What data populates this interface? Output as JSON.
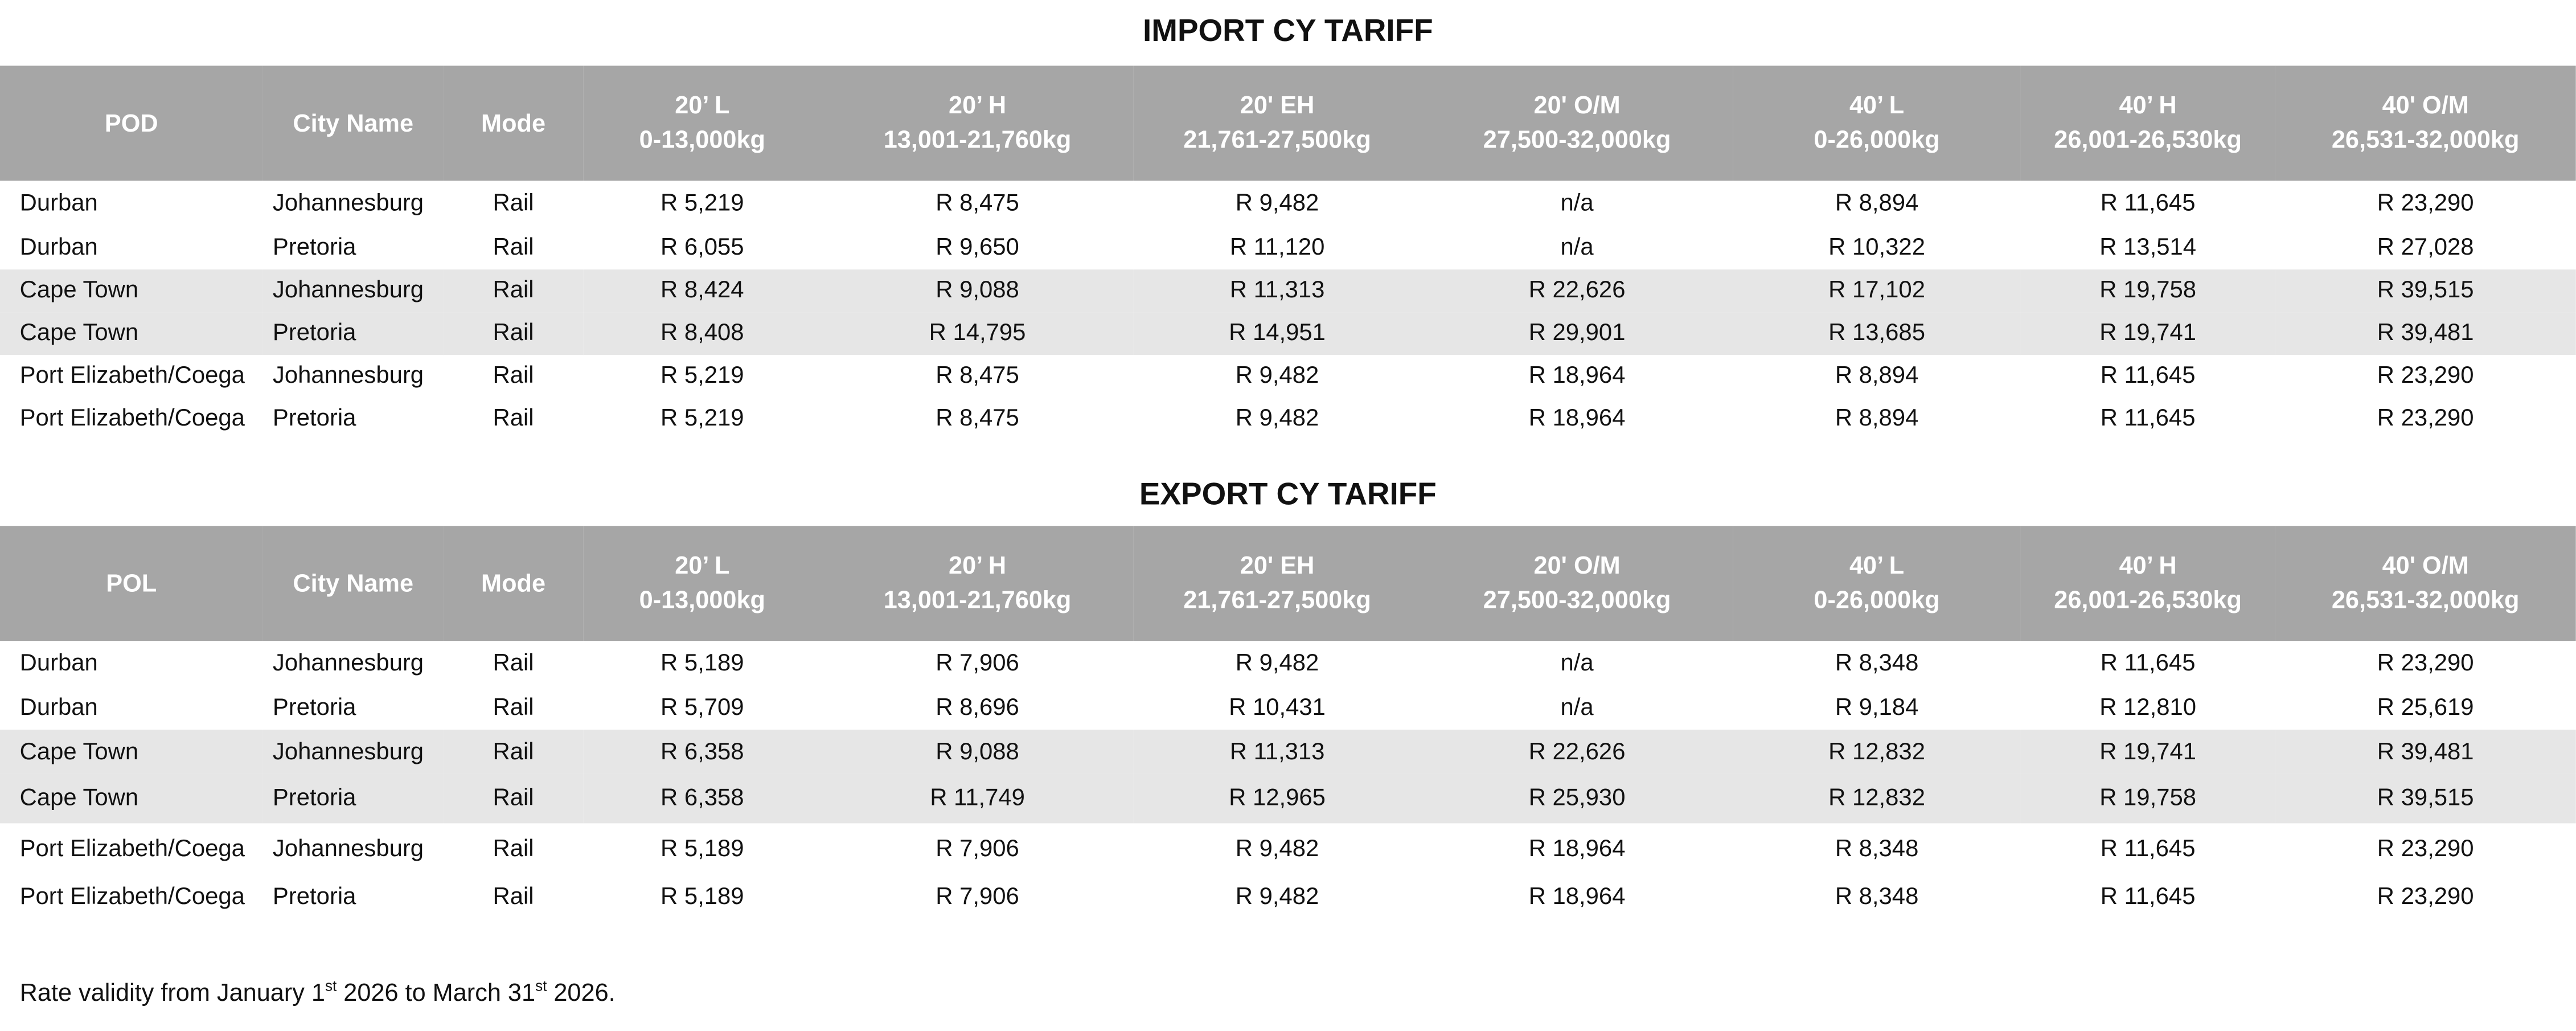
{
  "import": {
    "title": "IMPORT CY TARIFF",
    "headers": [
      [
        "POD",
        ""
      ],
      [
        "City Name",
        ""
      ],
      [
        "Mode",
        ""
      ],
      [
        "20’ L",
        "0-13,000kg"
      ],
      [
        "20’ H",
        "13,001-21,760kg"
      ],
      [
        "20' EH",
        "21,761-27,500kg"
      ],
      [
        "20' O/M",
        "27,500-32,000kg"
      ],
      [
        "40’ L",
        "0-26,000kg"
      ],
      [
        "40’ H",
        "26,001-26,530kg"
      ],
      [
        "40' O/M",
        "26,531-32,000kg"
      ]
    ],
    "rows": [
      [
        "Durban",
        "Johannesburg",
        "Rail",
        "R 5,219",
        "R 8,475",
        "R 9,482",
        "n/a",
        "R 8,894",
        "R 11,645",
        "R 23,290"
      ],
      [
        "Durban",
        "Pretoria",
        "Rail",
        "R 6,055",
        "R 9,650",
        "R 11,120",
        "n/a",
        "R 10,322",
        "R 13,514",
        "R 27,028"
      ],
      [
        "Cape Town",
        "Johannesburg",
        "Rail",
        "R 8,424",
        "R 9,088",
        "R 11,313",
        "R 22,626",
        "R 17,102",
        "R 19,758",
        "R 39,515"
      ],
      [
        "Cape Town",
        "Pretoria",
        "Rail",
        "R 8,408",
        "R 14,795",
        "R 14,951",
        "R 29,901",
        "R 13,685",
        "R 19,741",
        "R 39,481"
      ],
      [
        "Port Elizabeth/Coega",
        "Johannesburg",
        "Rail",
        "R 5,219",
        "R 8,475",
        "R 9,482",
        "R 18,964",
        "R 8,894",
        "R 11,645",
        "R 23,290"
      ],
      [
        "Port Elizabeth/Coega",
        "Pretoria",
        "Rail",
        "R 5,219",
        "R 8,475",
        "R 9,482",
        "R 18,964",
        "R 8,894",
        "R 11,645",
        "R 23,290"
      ]
    ]
  },
  "export": {
    "title": "EXPORT CY TARIFF",
    "headers": [
      [
        "POL",
        ""
      ],
      [
        "City Name",
        ""
      ],
      [
        "Mode",
        ""
      ],
      [
        "20’ L",
        "0-13,000kg"
      ],
      [
        "20’ H",
        "13,001-21,760kg"
      ],
      [
        "20' EH",
        "21,761-27,500kg"
      ],
      [
        "20' O/M",
        "27,500-32,000kg"
      ],
      [
        "40’ L",
        "0-26,000kg"
      ],
      [
        "40’ H",
        "26,001-26,530kg"
      ],
      [
        "40' O/M",
        "26,531-32,000kg"
      ]
    ],
    "rows": [
      [
        "Durban",
        "Johannesburg",
        "Rail",
        "R 5,189",
        "R 7,906",
        "R 9,482",
        "n/a",
        "R 8,348",
        "R 11,645",
        "R 23,290"
      ],
      [
        "Durban",
        "Pretoria",
        "Rail",
        "R 5,709",
        "R 8,696",
        "R 10,431",
        "n/a",
        "R 9,184",
        "R 12,810",
        "R 25,619"
      ],
      [
        "Cape Town",
        "Johannesburg",
        "Rail",
        "R 6,358",
        "R 9,088",
        "R 11,313",
        "R 22,626",
        "R 12,832",
        "R 19,741",
        "R 39,481"
      ],
      [
        "Cape Town",
        "Pretoria",
        "Rail",
        "R 6,358",
        "R 11,749",
        "R 12,965",
        "R 25,930",
        "R 12,832",
        "R 19,758",
        "R 39,515"
      ],
      [
        "Port Elizabeth/Coega",
        "Johannesburg",
        "Rail",
        "R 5,189",
        "R 7,906",
        "R 9,482",
        "R 18,964",
        "R 8,348",
        "R 11,645",
        "R 23,290"
      ],
      [
        "Port Elizabeth/Coega",
        "Pretoria",
        "Rail",
        "R 5,189",
        "R 7,906",
        "R 9,482",
        "R 18,964",
        "R 8,348",
        "R 11,645",
        "R 23,290"
      ]
    ]
  },
  "footnote": {
    "prefix": "Rate validity from January 1",
    "sup1": "st",
    "middle": " 2026 to March 31",
    "sup2": "st",
    "suffix": " 2026."
  },
  "colors": {
    "header_bg": "#a6a6a6",
    "band_bg": "#e6e6e6"
  }
}
